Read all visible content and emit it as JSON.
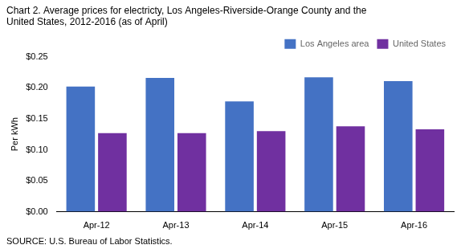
{
  "chart_data": {
    "type": "bar",
    "title": [
      "Chart 2. Average prices for electricty, Los Angeles-Riverside-Orange County and the",
      "United States, 2012-2016 (as of April)"
    ],
    "y_label": "Per kWh",
    "source": "SOURCE: U.S. Bureau of Labor Statistics.",
    "categories": [
      "Apr-12",
      "Apr-13",
      "Apr-14",
      "Apr-15",
      "Apr-16"
    ],
    "series": [
      {
        "name": "Los Angeles area",
        "color": "#4472C4",
        "values": [
          0.202,
          0.216,
          0.178,
          0.217,
          0.211
        ]
      },
      {
        "name": "United States",
        "color": "#7030A0",
        "values": [
          0.127,
          0.127,
          0.13,
          0.138,
          0.133
        ]
      }
    ],
    "ylim": [
      0,
      0.25
    ],
    "yticks": [
      {
        "value": 0.0,
        "label": "$0.00"
      },
      {
        "value": 0.05,
        "label": "$0.05"
      },
      {
        "value": 0.1,
        "label": "$0.10"
      },
      {
        "value": 0.15,
        "label": "$0.15"
      },
      {
        "value": 0.2,
        "label": "$0.20"
      },
      {
        "value": 0.25,
        "label": "$0.25"
      }
    ],
    "grid": false,
    "legend": "upper right"
  }
}
